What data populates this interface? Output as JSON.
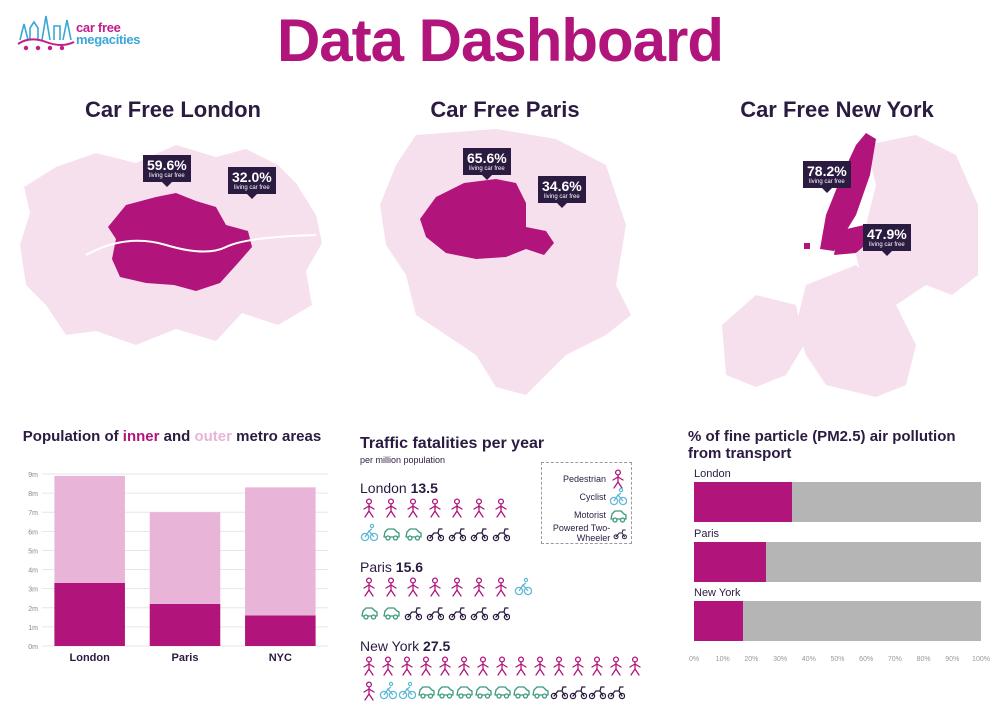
{
  "header": {
    "logo_line1": "car free",
    "logo_line2": "megacities",
    "title": "Data Dashboard"
  },
  "maps": [
    {
      "city": "Car Free London",
      "inner_pct": "59.6%",
      "outer_pct": "32.0%",
      "caption": "living car free"
    },
    {
      "city": "Car Free Paris",
      "inner_pct": "65.6%",
      "outer_pct": "34.6%",
      "caption": "living car free"
    },
    {
      "city": "Car Free New York",
      "inner_pct": "78.2%",
      "outer_pct": "47.9%",
      "caption": "living car free"
    }
  ],
  "colors": {
    "magenta": "#b1157b",
    "pink_light": "#e8b4d8",
    "map_light": "#f6e0ee",
    "navy": "#2b1b40",
    "cyan": "#5fb8d6",
    "green": "#3a9a7c",
    "grey": "#b5b5b5"
  },
  "population_chart": {
    "title_part1": "Population of ",
    "title_inner": "inner",
    "title_part2": " and ",
    "title_outer": "outer",
    "title_part3": " metro areas"
  },
  "fatalities": {
    "title": "Traffic fatalities per year",
    "subtitle": "per million population",
    "cities": [
      {
        "name": "London",
        "value": "13.5",
        "row1": [
          "ped",
          "ped",
          "ped",
          "ped",
          "ped",
          "ped",
          "ped"
        ],
        "row2": [
          "cyc",
          "mot",
          "mot",
          "ptw",
          "ptw",
          "ptw",
          "ptw"
        ]
      },
      {
        "name": "Paris",
        "value": "15.6",
        "row1": [
          "ped",
          "ped",
          "ped",
          "ped",
          "ped",
          "ped",
          "ped",
          "cyc"
        ],
        "row2": [
          "mot",
          "mot",
          "ptw",
          "ptw",
          "ptw",
          "ptw",
          "ptw"
        ]
      },
      {
        "name": "New York",
        "value": "27.5",
        "row1": [
          "ped",
          "ped",
          "ped",
          "ped",
          "ped",
          "ped",
          "ped",
          "ped",
          "ped",
          "ped",
          "ped",
          "ped",
          "ped",
          "ped",
          "ped"
        ],
        "row2": [
          "ped",
          "cyc",
          "cyc",
          "mot",
          "mot",
          "mot",
          "mot",
          "mot",
          "mot",
          "mot",
          "ptw",
          "ptw",
          "ptw",
          "ptw"
        ]
      }
    ],
    "legend": [
      {
        "label": "Pedestrian",
        "icon": "ped"
      },
      {
        "label": "Cyclist",
        "icon": "cyc"
      },
      {
        "label": "Motorist",
        "icon": "mot"
      },
      {
        "label": "Powered Two-Wheeler",
        "icon": "ptw"
      }
    ]
  },
  "pm25": {
    "title": "% of fine particle (PM2.5) air pollution from transport"
  },
  "chart_data": [
    {
      "type": "bar",
      "stacked": true,
      "categories": [
        "London",
        "Paris",
        "NYC"
      ],
      "series": [
        {
          "name": "inner",
          "values": [
            3.3,
            2.2,
            1.6
          ],
          "color": "#b1157b"
        },
        {
          "name": "outer",
          "values": [
            5.6,
            4.8,
            6.7
          ],
          "color": "#e8b4d8"
        }
      ],
      "ylim": [
        0,
        9
      ],
      "yticks": [
        "0m",
        "1m",
        "2m",
        "3m",
        "4m",
        "5m",
        "6m",
        "7m",
        "8m",
        "9m"
      ],
      "grid": true
    },
    {
      "type": "bar",
      "orientation": "horizontal",
      "categories": [
        "London",
        "Paris",
        "New York"
      ],
      "values": [
        34,
        25,
        17
      ],
      "xlim": [
        0,
        100
      ],
      "xticks": [
        "0%",
        "10%",
        "20%",
        "30%",
        "40%",
        "50%",
        "60%",
        "70%",
        "80%",
        "90%",
        "100%"
      ]
    }
  ]
}
